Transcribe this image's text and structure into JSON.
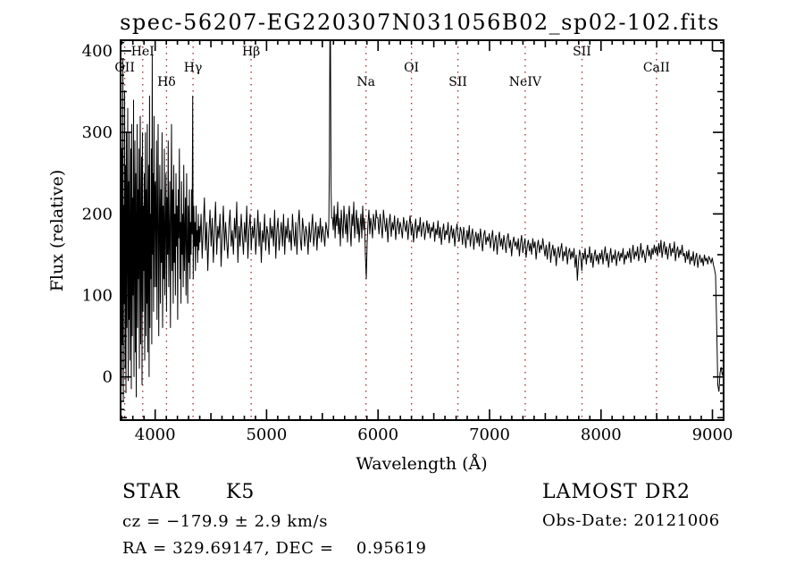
{
  "title": "spec-56207-EG220307N031056B02_sp02-102.fits",
  "chart_data": {
    "type": "line",
    "title": "spec-56207-EG220307N031056B02_sp02-102.fits",
    "xlabel": "Wavelength (Å)",
    "ylabel": "Flux (relative)",
    "xlim": [
      3690,
      9100
    ],
    "ylim": [
      -53,
      413
    ],
    "xticks": [
      4000,
      5000,
      6000,
      7000,
      8000,
      9000
    ],
    "yticks": [
      0,
      100,
      200,
      300,
      400
    ],
    "x_minor_step": 100,
    "y_minor_step": 10,
    "grid": false,
    "legend": "none",
    "line_color": "#000000",
    "marker_line_color": "#9e2b2b",
    "spectral_lines": [
      {
        "label": "OII",
        "wavelength": 3727,
        "row": 2
      },
      {
        "label": "HeI",
        "wavelength": 3889,
        "row": 1
      },
      {
        "label": "Hδ",
        "wavelength": 4102,
        "row": 3
      },
      {
        "label": "Hγ",
        "wavelength": 4340,
        "row": 2
      },
      {
        "label": "Hβ",
        "wavelength": 4861,
        "row": 1
      },
      {
        "label": "Na",
        "wavelength": 5892,
        "row": 3
      },
      {
        "label": "OI",
        "wavelength": 6300,
        "row": 2
      },
      {
        "label": "SII",
        "wavelength": 6716,
        "row": 3
      },
      {
        "label": "NeIV",
        "wavelength": 7320,
        "row": 3
      },
      {
        "label": "SII",
        "wavelength": 7830,
        "row": 1
      },
      {
        "label": "CaII",
        "wavelength": 8498,
        "row": 2
      }
    ],
    "segments": [
      {
        "x0": 3690,
        "dx": 4,
        "flux": [
          120,
          320,
          -10,
          280,
          40,
          390,
          -30,
          210,
          90,
          350,
          10,
          260,
          -20,
          300,
          60,
          180,
          330,
          -5,
          240,
          70,
          300,
          20,
          150,
          280,
          -15,
          310,
          50,
          220,
          100,
          340,
          0,
          190,
          290,
          30,
          250,
          -25,
          170,
          310,
          60,
          230,
          120,
          280,
          10,
          200,
          320,
          40,
          160,
          270,
          -10,
          300,
          80,
          210,
          130,
          250,
          20,
          180,
          300,
          50,
          230,
          90,
          310,
          30,
          170,
          260,
          0,
          345,
          60,
          200,
          120,
          280,
          40,
          395,
          150,
          250,
          80,
          320,
          110,
          230
        ]
      },
      {
        "x0": 4002,
        "dx": 5,
        "flux": [
          240,
          110,
          290,
          70,
          200,
          310,
          50,
          180,
          260,
          90,
          230,
          140,
          300,
          60,
          210,
          120,
          280,
          100,
          190,
          250,
          80,
          220,
          150,
          290,
          110,
          170,
          240,
          60,
          200,
          310,
          130,
          230,
          90,
          260,
          140,
          200,
          100,
          250,
          160,
          210,
          70,
          230,
          170,
          280,
          120,
          190,
          90,
          240,
          150,
          200,
          110,
          260,
          130,
          180,
          220,
          100,
          250,
          160,
          90,
          210,
          140,
          230,
          120,
          190,
          150,
          230,
          175,
          345,
          120,
          210,
          160,
          190,
          130,
          210,
          160,
          180,
          140,
          200,
          155,
          185
        ]
      },
      {
        "x0": 4402,
        "dx": 10,
        "flux": [
          165,
          200,
          145,
          185,
          220,
          155,
          190,
          130,
          175,
          205,
          160,
          195,
          140,
          180,
          215,
          150,
          185,
          170,
          200,
          135,
          175,
          210,
          155,
          190,
          165,
          145,
          185,
          205,
          160,
          180,
          150,
          195,
          170,
          215,
          140,
          185,
          160,
          200,
          175,
          150,
          190,
          165,
          210,
          145,
          180,
          200,
          155,
          185,
          170,
          195,
          150,
          175,
          205,
          160,
          190,
          140,
          180,
          165,
          200,
          155,
          185,
          175,
          150,
          195,
          170,
          185,
          160,
          205,
          145,
          180,
          195,
          155,
          175,
          190,
          160,
          200,
          150,
          185,
          170,
          195,
          165,
          180,
          155,
          200,
          175,
          160,
          190,
          150,
          185,
          205,
          170,
          155,
          195,
          180,
          160,
          185,
          175,
          150,
          190,
          165,
          180,
          200,
          160,
          175,
          190,
          155,
          185,
          170,
          195,
          165,
          185,
          175,
          160,
          190,
          180,
          170
        ]
      },
      {
        "x0": 5558,
        "dx": 5,
        "flux": [
          190,
          260,
          420,
          420,
          230,
          195
        ]
      },
      {
        "x0": 5590,
        "dx": 8,
        "flux": [
          195,
          180,
          210,
          170,
          200,
          185,
          215,
          175,
          195,
          160,
          205,
          185,
          170,
          210,
          190,
          175,
          200,
          165,
          195,
          210,
          180,
          160,
          200,
          185,
          215,
          170,
          190,
          205,
          175,
          195,
          165,
          185,
          200,
          170,
          210,
          180,
          195,
          150,
          120,
          165,
          190,
          205,
          175,
          195,
          185,
          170,
          200,
          190,
          180,
          205,
          195
        ]
      },
      {
        "x0": 5998,
        "dx": 10,
        "flux": [
          195,
          175,
          200,
          185,
          170,
          205,
          190,
          178,
          195,
          165,
          188,
          200,
          172,
          190,
          180,
          198,
          168,
          185,
          195,
          175,
          190,
          182,
          170,
          196,
          186,
          178,
          192,
          168,
          186,
          198,
          174,
          188,
          165,
          182,
          194,
          170,
          186,
          178,
          196,
          172,
          184,
          190,
          168,
          180,
          192,
          176,
          188,
          170,
          184,
          178,
          190,
          166,
          182,
          174,
          192,
          170,
          184,
          162,
          178,
          188,
          168,
          180,
          174,
          190,
          164,
          176,
          186,
          170,
          182,
          160,
          178,
          188,
          172,
          166,
          184,
          178,
          162,
          184,
          170,
          158,
          180,
          168,
          186,
          160,
          174,
          182,
          156,
          170,
          178,
          164,
          176,
          160,
          182,
          168,
          154,
          174,
          180,
          162,
          172,
          166,
          176,
          158,
          170,
          180,
          154,
          166,
          174,
          150,
          168,
          178,
          160,
          170,
          156,
          174,
          164,
          152,
          170,
          176,
          158,
          168,
          148,
          164,
          172,
          160,
          166,
          156,
          170,
          148,
          164,
          174,
          152,
          162,
          170,
          146,
          160,
          168,
          154,
          164,
          150,
          170,
          158,
          166,
          144,
          160,
          168,
          152,
          162,
          156,
          170,
          158,
          148,
          162,
          144,
          158,
          166,
          140,
          154,
          162,
          148,
          158,
          136,
          152,
          160,
          146,
          156,
          164,
          142,
          154,
          148,
          160,
          138,
          152,
          158,
          144,
          154,
          146,
          158,
          134,
          150,
          118,
          142,
          156,
          148,
          130,
          152,
          144,
          158,
          138,
          150,
          146,
          160,
          140,
          152,
          134,
          148,
          156,
          142,
          150,
          138,
          152,
          144,
          156,
          138,
          150,
          160,
          142,
          152,
          134,
          148,
          158,
          140,
          150,
          144,
          156,
          136,
          148,
          154,
          142,
          152,
          146,
          158,
          138,
          150,
          144,
          154,
          146,
          158,
          140,
          152,
          162,
          144,
          154,
          148,
          160,
          142,
          152,
          164,
          146,
          156,
          150,
          140,
          154,
          162,
          148,
          156,
          144,
          158,
          150,
          162,
          152,
          160,
          148,
          164,
          152,
          168,
          146,
          158,
          166,
          150,
          160,
          144,
          156,
          164,
          148,
          158,
          152,
          166,
          142,
          154,
          160,
          146,
          156,
          150,
          162,
          148,
          152,
          140,
          154,
          144,
          156,
          138,
          148,
          142,
          154,
          136,
          146,
          152,
          134,
          144,
          150,
          140,
          146,
          136,
          150,
          142,
          146,
          138,
          148,
          144,
          140,
          146
        ]
      },
      {
        "x0": 9008,
        "dx": 10,
        "flux": [
          138,
          132,
          125,
          60,
          -10,
          -18,
          5,
          12,
          2,
          8
        ]
      }
    ]
  },
  "footer": {
    "class_label": "STAR",
    "subclass_label": "K5",
    "cz_line": "cz = −179.9 ± 2.9 km/s",
    "radec_line": "RA = 329.69147, DEC =    0.95619",
    "survey": "LAMOST DR2",
    "obsdate_line": "Obs-Date: 20121006"
  }
}
